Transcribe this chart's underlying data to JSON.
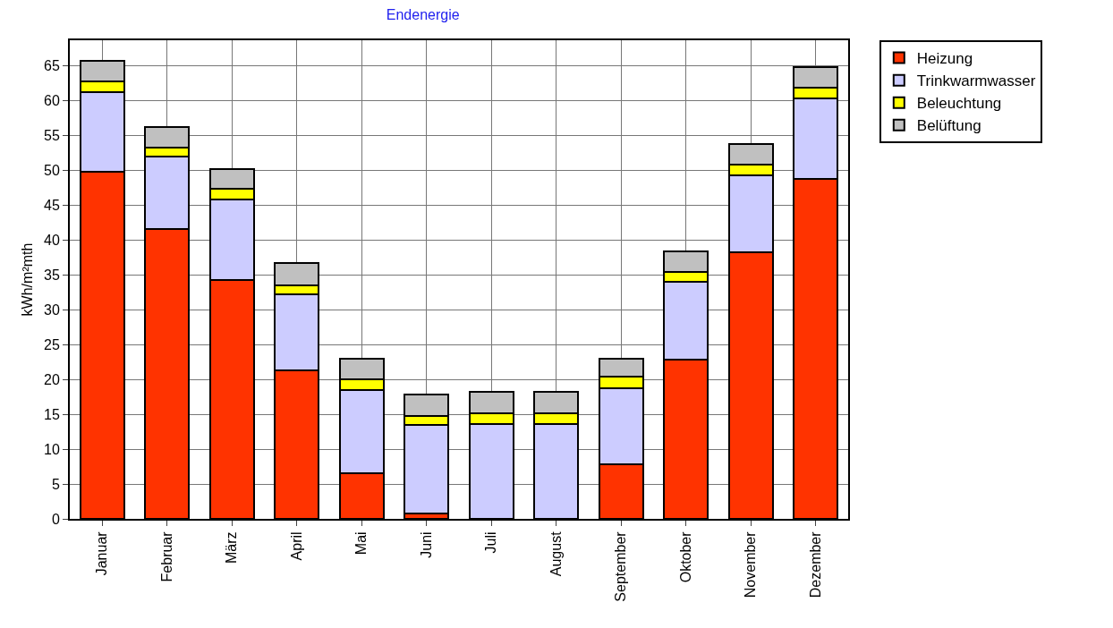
{
  "chart_data": {
    "type": "bar",
    "title": "Endenergie",
    "ylabel": "kWh/m²mth",
    "stacked": true,
    "grid": true,
    "legend": "top right",
    "ylim": [
      0,
      68.7
    ],
    "yticks": [
      0,
      5,
      10,
      15,
      20,
      25,
      30,
      35,
      40,
      45,
      50,
      55,
      60,
      65
    ],
    "categories": [
      "Januar",
      "Februar",
      "März",
      "April",
      "Mai",
      "Juni",
      "Juli",
      "August",
      "September",
      "Oktober",
      "November",
      "Dezember"
    ],
    "series": [
      {
        "name": "Heizung",
        "color": "#ff3300",
        "values": [
          49.8,
          41.6,
          34.3,
          21.3,
          6.5,
          0.8,
          null,
          null,
          7.8,
          22.9,
          38.3,
          48.8
        ]
      },
      {
        "name": "Trinkwarmwasser",
        "color": "#ccccff",
        "values": [
          11.4,
          10.4,
          11.5,
          10.9,
          12.0,
          12.7,
          13.6,
          13.6,
          11.0,
          11.1,
          11.0,
          11.5
        ]
      },
      {
        "name": "Beleuchtung",
        "color": "#ffff00",
        "values": [
          1.6,
          1.3,
          1.6,
          1.3,
          1.5,
          1.3,
          1.6,
          1.6,
          1.6,
          1.5,
          1.6,
          1.6
        ]
      },
      {
        "name": "Belüftung",
        "color": "#c0c0c0",
        "values": [
          3.0,
          2.9,
          2.8,
          3.2,
          3.0,
          3.0,
          3.0,
          3.0,
          2.6,
          2.9,
          2.9,
          3.0
        ]
      }
    ]
  }
}
